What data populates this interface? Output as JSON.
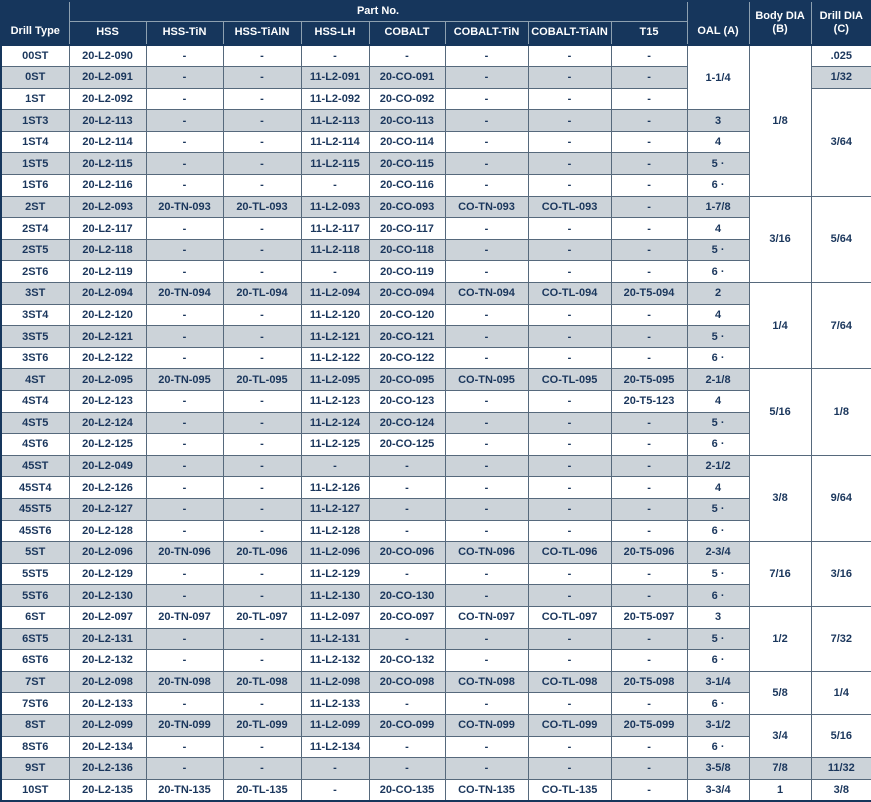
{
  "header": {
    "drill_type": "Drill Type",
    "part_no": "Part No.",
    "part_columns": [
      "HSS",
      "HSS-TiN",
      "HSS-TiAlN",
      "HSS-LH",
      "COBALT",
      "COBALT-TiN",
      "COBALT-TiAlN",
      "T15"
    ],
    "oal": "OAL (A)",
    "body_dia_line1": "Body DIA",
    "body_dia_line2": "(B)",
    "drill_dia_line1": "Drill DIA",
    "drill_dia_line2": "(C)"
  },
  "colors": {
    "header_bg": "#16365C",
    "header_text": "#FFFFFF",
    "body_text": "#1A365C",
    "row_white": "#FFFFFF",
    "row_alt": "#CCD3D9",
    "grid_line": "#56697C",
    "header_grid_line": "#8DA0B0",
    "outer_border": "#16365C"
  },
  "rows": [
    {
      "type": "00ST",
      "parts": [
        "20-L2-090",
        "-",
        "-",
        "-",
        "-",
        "-",
        "-",
        "-"
      ],
      "oal": {
        "text": "1-1/4",
        "span": 3
      },
      "body": {
        "text": "1/8",
        "span": 7
      },
      "drill": {
        "text": ".025",
        "span": 1
      }
    },
    {
      "type": "0ST",
      "parts": [
        "20-L2-091",
        "-",
        "-",
        "11-L2-091",
        "20-CO-091",
        "-",
        "-",
        "-"
      ],
      "drill": {
        "text": "1/32",
        "span": 1
      }
    },
    {
      "type": "1ST",
      "parts": [
        "20-L2-092",
        "-",
        "-",
        "11-L2-092",
        "20-CO-092",
        "-",
        "-",
        "-"
      ],
      "drill": {
        "text": "3/64",
        "span": 5
      }
    },
    {
      "type": "1ST3",
      "parts": [
        "20-L2-113",
        "-",
        "-",
        "11-L2-113",
        "20-CO-113",
        "-",
        "-",
        "-"
      ],
      "oal": {
        "text": "3",
        "span": 1
      }
    },
    {
      "type": "1ST4",
      "parts": [
        "20-L2-114",
        "-",
        "-",
        "11-L2-114",
        "20-CO-114",
        "-",
        "-",
        "-"
      ],
      "oal": {
        "text": "4",
        "span": 1
      }
    },
    {
      "type": "1ST5",
      "parts": [
        "20-L2-115",
        "-",
        "-",
        "11-L2-115",
        "20-CO-115",
        "-",
        "-",
        "-"
      ],
      "oal": {
        "text": "5 ·",
        "span": 1
      }
    },
    {
      "type": "1ST6",
      "parts": [
        "20-L2-116",
        "-",
        "-",
        "-",
        "20-CO-116",
        "-",
        "-",
        "-"
      ],
      "oal": {
        "text": "6 ·",
        "span": 1
      }
    },
    {
      "type": "2ST",
      "parts": [
        "20-L2-093",
        "20-TN-093",
        "20-TL-093",
        "11-L2-093",
        "20-CO-093",
        "CO-TN-093",
        "CO-TL-093",
        "-"
      ],
      "oal": {
        "text": "1-7/8",
        "span": 1
      },
      "body": {
        "text": "3/16",
        "span": 4
      },
      "drill": {
        "text": "5/64",
        "span": 4
      }
    },
    {
      "type": "2ST4",
      "parts": [
        "20-L2-117",
        "-",
        "-",
        "11-L2-117",
        "20-CO-117",
        "-",
        "-",
        "-"
      ],
      "oal": {
        "text": "4",
        "span": 1
      }
    },
    {
      "type": "2ST5",
      "parts": [
        "20-L2-118",
        "-",
        "-",
        "11-L2-118",
        "20-CO-118",
        "-",
        "-",
        "-"
      ],
      "oal": {
        "text": "5 ·",
        "span": 1
      }
    },
    {
      "type": "2ST6",
      "parts": [
        "20-L2-119",
        "-",
        "-",
        "-",
        "20-CO-119",
        "-",
        "-",
        "-"
      ],
      "oal": {
        "text": "6 ·",
        "span": 1
      }
    },
    {
      "type": "3ST",
      "parts": [
        "20-L2-094",
        "20-TN-094",
        "20-TL-094",
        "11-L2-094",
        "20-CO-094",
        "CO-TN-094",
        "CO-TL-094",
        "20-T5-094"
      ],
      "oal": {
        "text": "2",
        "span": 1
      },
      "body": {
        "text": "1/4",
        "span": 4
      },
      "drill": {
        "text": "7/64",
        "span": 4
      }
    },
    {
      "type": "3ST4",
      "parts": [
        "20-L2-120",
        "-",
        "-",
        "11-L2-120",
        "20-CO-120",
        "-",
        "-",
        "-"
      ],
      "oal": {
        "text": "4",
        "span": 1
      }
    },
    {
      "type": "3ST5",
      "parts": [
        "20-L2-121",
        "-",
        "-",
        "11-L2-121",
        "20-CO-121",
        "-",
        "-",
        "-"
      ],
      "oal": {
        "text": "5 ·",
        "span": 1
      }
    },
    {
      "type": "3ST6",
      "parts": [
        "20-L2-122",
        "-",
        "-",
        "11-L2-122",
        "20-CO-122",
        "-",
        "-",
        "-"
      ],
      "oal": {
        "text": "6 ·",
        "span": 1
      }
    },
    {
      "type": "4ST",
      "parts": [
        "20-L2-095",
        "20-TN-095",
        "20-TL-095",
        "11-L2-095",
        "20-CO-095",
        "CO-TN-095",
        "CO-TL-095",
        "20-T5-095"
      ],
      "oal": {
        "text": "2-1/8",
        "span": 1
      },
      "body": {
        "text": "5/16",
        "span": 4
      },
      "drill": {
        "text": "1/8",
        "span": 4
      }
    },
    {
      "type": "4ST4",
      "parts": [
        "20-L2-123",
        "-",
        "-",
        "11-L2-123",
        "20-CO-123",
        "-",
        "-",
        "20-T5-123"
      ],
      "oal": {
        "text": "4",
        "span": 1
      }
    },
    {
      "type": "4ST5",
      "parts": [
        "20-L2-124",
        "-",
        "-",
        "11-L2-124",
        "20-CO-124",
        "-",
        "-",
        "-"
      ],
      "oal": {
        "text": "5 ·",
        "span": 1
      }
    },
    {
      "type": "4ST6",
      "parts": [
        "20-L2-125",
        "-",
        "-",
        "11-L2-125",
        "20-CO-125",
        "-",
        "-",
        "-"
      ],
      "oal": {
        "text": "6 ·",
        "span": 1
      }
    },
    {
      "type": "45ST",
      "parts": [
        "20-L2-049",
        "-",
        "-",
        "-",
        "-",
        "-",
        "-",
        "-"
      ],
      "oal": {
        "text": "2-1/2",
        "span": 1
      },
      "body": {
        "text": "3/8",
        "span": 4
      },
      "drill": {
        "text": "9/64",
        "span": 4
      }
    },
    {
      "type": "45ST4",
      "parts": [
        "20-L2-126",
        "-",
        "-",
        "11-L2-126",
        "-",
        "-",
        "-",
        "-"
      ],
      "oal": {
        "text": "4",
        "span": 1
      }
    },
    {
      "type": "45ST5",
      "parts": [
        "20-L2-127",
        "-",
        "-",
        "11-L2-127",
        "-",
        "-",
        "-",
        "-"
      ],
      "oal": {
        "text": "5 ·",
        "span": 1
      }
    },
    {
      "type": "45ST6",
      "parts": [
        "20-L2-128",
        "-",
        "-",
        "11-L2-128",
        "-",
        "-",
        "-",
        "-"
      ],
      "oal": {
        "text": "6 ·",
        "span": 1
      }
    },
    {
      "type": "5ST",
      "parts": [
        "20-L2-096",
        "20-TN-096",
        "20-TL-096",
        "11-L2-096",
        "20-CO-096",
        "CO-TN-096",
        "CO-TL-096",
        "20-T5-096"
      ],
      "oal": {
        "text": "2-3/4",
        "span": 1
      },
      "body": {
        "text": "7/16",
        "span": 3
      },
      "drill": {
        "text": "3/16",
        "span": 3
      }
    },
    {
      "type": "5ST5",
      "parts": [
        "20-L2-129",
        "-",
        "-",
        "11-L2-129",
        "-",
        "-",
        "-",
        "-"
      ],
      "oal": {
        "text": "5 ·",
        "span": 1
      }
    },
    {
      "type": "5ST6",
      "parts": [
        "20-L2-130",
        "-",
        "-",
        "11-L2-130",
        "20-CO-130",
        "-",
        "-",
        "-"
      ],
      "oal": {
        "text": "6 ·",
        "span": 1
      }
    },
    {
      "type": "6ST",
      "parts": [
        "20-L2-097",
        "20-TN-097",
        "20-TL-097",
        "11-L2-097",
        "20-CO-097",
        "CO-TN-097",
        "CO-TL-097",
        "20-T5-097"
      ],
      "oal": {
        "text": "3",
        "span": 1
      },
      "body": {
        "text": "1/2",
        "span": 3
      },
      "drill": {
        "text": "7/32",
        "span": 3
      }
    },
    {
      "type": "6ST5",
      "parts": [
        "20-L2-131",
        "-",
        "-",
        "11-L2-131",
        "-",
        "-",
        "-",
        "-"
      ],
      "oal": {
        "text": "5 ·",
        "span": 1
      }
    },
    {
      "type": "6ST6",
      "parts": [
        "20-L2-132",
        "-",
        "-",
        "11-L2-132",
        "20-CO-132",
        "-",
        "-",
        "-"
      ],
      "oal": {
        "text": "6 ·",
        "span": 1
      }
    },
    {
      "type": "7ST",
      "parts": [
        "20-L2-098",
        "20-TN-098",
        "20-TL-098",
        "11-L2-098",
        "20-CO-098",
        "CO-TN-098",
        "CO-TL-098",
        "20-T5-098"
      ],
      "oal": {
        "text": "3-1/4",
        "span": 1
      },
      "body": {
        "text": "5/8",
        "span": 2
      },
      "drill": {
        "text": "1/4",
        "span": 2
      }
    },
    {
      "type": "7ST6",
      "parts": [
        "20-L2-133",
        "-",
        "-",
        "11-L2-133",
        "-",
        "-",
        "-",
        "-"
      ],
      "oal": {
        "text": "6 ·",
        "span": 1
      }
    },
    {
      "type": "8ST",
      "parts": [
        "20-L2-099",
        "20-TN-099",
        "20-TL-099",
        "11-L2-099",
        "20-CO-099",
        "CO-TN-099",
        "CO-TL-099",
        "20-T5-099"
      ],
      "oal": {
        "text": "3-1/2",
        "span": 1
      },
      "body": {
        "text": "3/4",
        "span": 2
      },
      "drill": {
        "text": "5/16",
        "span": 2
      }
    },
    {
      "type": "8ST6",
      "parts": [
        "20-L2-134",
        "-",
        "-",
        "11-L2-134",
        "-",
        "-",
        "-",
        "-"
      ],
      "oal": {
        "text": "6 ·",
        "span": 1
      }
    },
    {
      "type": "9ST",
      "parts": [
        "20-L2-136",
        "-",
        "-",
        "-",
        "-",
        "-",
        "-",
        "-"
      ],
      "oal": {
        "text": "3-5/8",
        "span": 1
      },
      "body": {
        "text": "7/8",
        "span": 1
      },
      "drill": {
        "text": "11/32",
        "span": 1
      }
    },
    {
      "type": "10ST",
      "parts": [
        "20-L2-135",
        "20-TN-135",
        "20-TL-135",
        "-",
        "20-CO-135",
        "CO-TN-135",
        "CO-TL-135",
        "-"
      ],
      "oal": {
        "text": "3-3/4",
        "span": 1
      },
      "body": {
        "text": "1",
        "span": 1
      },
      "drill": {
        "text": "3/8",
        "span": 1
      }
    }
  ]
}
